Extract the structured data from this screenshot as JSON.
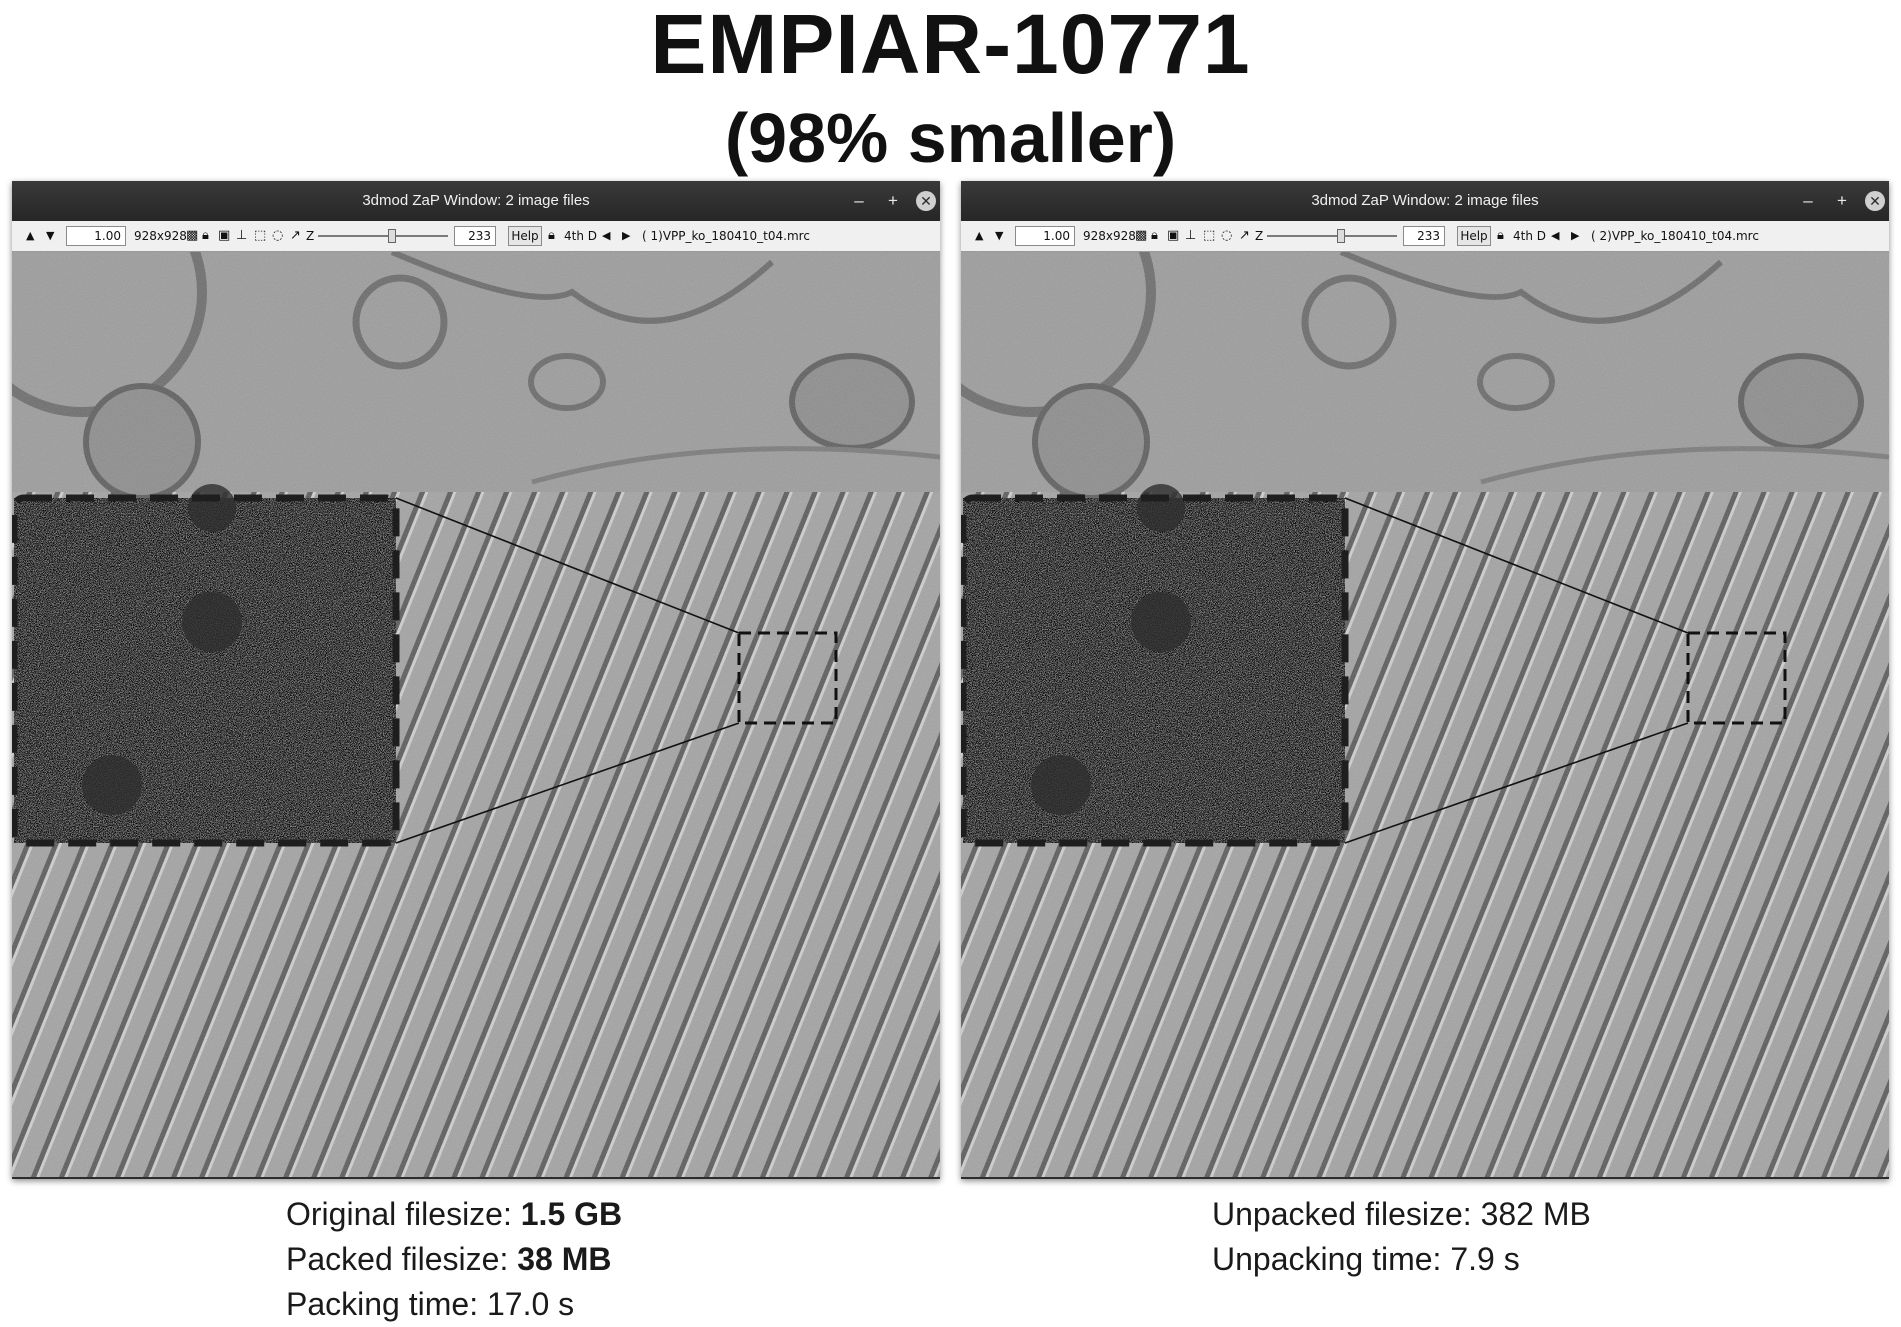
{
  "figure": {
    "title": "EMPIAR-10771",
    "subtitle": "(98% smaller)"
  },
  "windows": [
    {
      "title": "3dmod ZaP Window: 2 image files",
      "minimize": "–",
      "maximize": "+",
      "close": "✕",
      "zoom": "1.00",
      "size": "928x928",
      "z_label": "Z",
      "z_value": "233",
      "help": "Help",
      "mode": "4th D",
      "file_label": "(  1)VPP_ko_180410_t04.mrc"
    },
    {
      "title": "3dmod ZaP Window: 2 image files",
      "minimize": "–",
      "maximize": "+",
      "close": "✕",
      "zoom": "1.00",
      "size": "928x928",
      "z_label": "Z",
      "z_value": "233",
      "help": "Help",
      "mode": "4th D",
      "file_label": "(  2)VPP_ko_180410_t04.mrc"
    }
  ],
  "captions": {
    "left": {
      "original_label": "Original filesize: ",
      "original_value": "1.5 GB",
      "packed_label": "Packed filesize: ",
      "packed_value": "38 MB",
      "packing_time": "Packing time: 17.0 s"
    },
    "right": {
      "unpacked": "Unpacked filesize: 382 MB",
      "unpacking_time": "Unpacking time: 7.9 s"
    }
  },
  "colors": {
    "titlebar": "#2d2d2d",
    "toolbar": "#f0f0f0",
    "tomogram_gray": "#9a9a9a",
    "dash": "#1e1e1e"
  }
}
